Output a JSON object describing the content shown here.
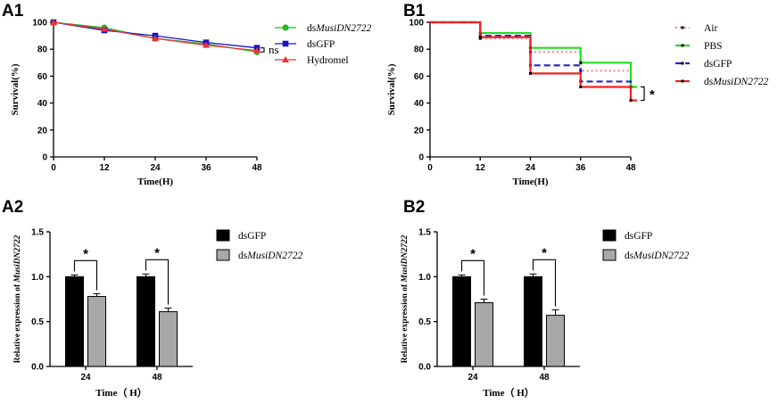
{
  "chart_data": [
    {
      "id": "A1",
      "panel_label": "A1",
      "type": "line",
      "xlabel": "Time(H)",
      "ylabel": "Survival(%)",
      "x": [
        0,
        12,
        24,
        36,
        48
      ],
      "xlim": [
        0,
        48
      ],
      "ylim": [
        0,
        100
      ],
      "xticks": [
        0,
        12,
        24,
        36,
        48
      ],
      "yticks": [
        0,
        20,
        40,
        60,
        80,
        100
      ],
      "series": [
        {
          "name_prefix": "ds",
          "name_italic": "MusiDN2722",
          "values": [
            100,
            96,
            88,
            84,
            78
          ],
          "color": "#22bb22",
          "marker": "circle"
        },
        {
          "name_prefix": "dsGFP",
          "name_italic": "",
          "values": [
            100,
            94,
            90,
            85,
            81
          ],
          "color": "#1515cc",
          "marker": "square"
        },
        {
          "name_prefix": "Hydromel",
          "name_italic": "",
          "values": [
            100,
            95,
            88,
            83,
            79
          ],
          "color": "#ee3333",
          "marker": "triangle"
        }
      ],
      "annotation": "ns"
    },
    {
      "id": "B1",
      "panel_label": "B1",
      "type": "line",
      "xlabel": "Time(H)",
      "ylabel": "Survival(%)",
      "xlim": [
        0,
        48
      ],
      "ylim": [
        0,
        100
      ],
      "xticks": [
        0,
        12,
        24,
        36,
        48
      ],
      "yticks": [
        0,
        20,
        40,
        60,
        80,
        100
      ],
      "steps": [
        0,
        12,
        24,
        36,
        48
      ],
      "end_x": 49.5,
      "series": [
        {
          "name_prefix": "Air",
          "name_italic": "",
          "values": [
            100,
            88,
            78,
            64,
            52
          ],
          "color": "#e89090",
          "dash": "2,3"
        },
        {
          "name_prefix": "PBS",
          "name_italic": "",
          "values": [
            100,
            92,
            81,
            70,
            52
          ],
          "color": "#22dd22",
          "dash": ""
        },
        {
          "name_prefix": "dsGFP",
          "name_italic": "",
          "values": [
            100,
            90,
            68,
            56,
            42
          ],
          "color": "#2222cc",
          "dash": "7,4"
        },
        {
          "name_prefix": "ds",
          "name_italic": "MusiDN2722",
          "values": [
            100,
            89,
            62,
            52,
            42
          ],
          "color": "#ee2222",
          "dash": ""
        }
      ],
      "annotation": "*"
    },
    {
      "id": "A2",
      "panel_label": "A2",
      "type": "bar",
      "categories": [
        "24",
        "48"
      ],
      "xlabel": "Time（ H）",
      "ylabel_prefix": "Relative expression of ",
      "ylabel_italic": "MusiDN2722",
      "ylim": [
        0,
        1.5
      ],
      "yticks": [
        0.0,
        0.5,
        1.0,
        1.5
      ],
      "series": [
        {
          "name_prefix": "dsGFP",
          "name_italic": "",
          "values": [
            1.0,
            1.0
          ],
          "errors": [
            0.02,
            0.03
          ],
          "color": "#000000"
        },
        {
          "name_prefix": "ds",
          "name_italic": "MusiDN2722",
          "values": [
            0.78,
            0.61
          ],
          "errors": [
            0.03,
            0.04
          ],
          "color": "#a8a8a8"
        }
      ],
      "significance": [
        "*",
        "*"
      ]
    },
    {
      "id": "B2",
      "panel_label": "B2",
      "type": "bar",
      "categories": [
        "24",
        "48"
      ],
      "xlabel": "Time（ H）",
      "ylabel_prefix": "Relative expression of ",
      "ylabel_italic": "MusiDN2722",
      "ylim": [
        0,
        1.5
      ],
      "yticks": [
        0.0,
        0.5,
        1.0,
        1.5
      ],
      "series": [
        {
          "name_prefix": "dsGFP",
          "name_italic": "",
          "values": [
            1.0,
            1.0
          ],
          "errors": [
            0.02,
            0.03
          ],
          "color": "#000000"
        },
        {
          "name_prefix": "ds",
          "name_italic": "MusiDN2722",
          "values": [
            0.71,
            0.57
          ],
          "errors": [
            0.04,
            0.06
          ],
          "color": "#a8a8a8"
        }
      ],
      "significance": [
        "*",
        "*"
      ]
    }
  ]
}
